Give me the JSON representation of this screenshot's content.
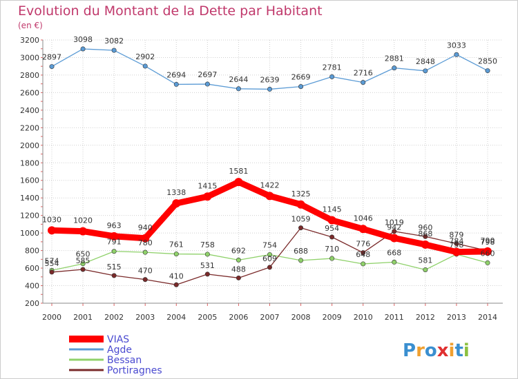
{
  "chart_data": {
    "type": "line",
    "title": "Evolution du Montant de la Dette par Habitant",
    "subtitle": "(en €)",
    "xlabel": "",
    "ylabel": "",
    "categories": [
      "2000",
      "2001",
      "2002",
      "2003",
      "2004",
      "2005",
      "2006",
      "2007",
      "2008",
      "2009",
      "2010",
      "2011",
      "2012",
      "2013",
      "2014"
    ],
    "ylim": [
      200,
      3200
    ],
    "yticks": [
      200,
      400,
      600,
      800,
      1000,
      1200,
      1400,
      1600,
      1800,
      2000,
      2200,
      2400,
      2600,
      2800,
      3000,
      3200
    ],
    "grid": true,
    "legend_position": "bottom-left",
    "series": [
      {
        "name": "Agde",
        "color": "#5b9bd5",
        "values": [
          2897,
          3098,
          3082,
          2902,
          2694,
          2697,
          2644,
          2639,
          2669,
          2781,
          2716,
          2881,
          2848,
          3033,
          2850
        ]
      },
      {
        "name": "Bessan",
        "color": "#8fd16a",
        "values": [
          574,
          650,
          791,
          780,
          761,
          758,
          692,
          754,
          688,
          710,
          648,
          668,
          581,
          758,
          660
        ]
      },
      {
        "name": "Portiragnes",
        "color": "#7a2a2a",
        "values": [
          554,
          585,
          515,
          470,
          410,
          531,
          488,
          609,
          1059,
          954,
          776,
          1019,
          960,
          879,
          798
        ]
      },
      {
        "name": "VIAS",
        "color": "#ff0000",
        "values": [
          1030,
          1020,
          963,
          940,
          1338,
          1415,
          1581,
          1422,
          1325,
          1145,
          1046,
          942,
          868,
          784,
          790
        ]
      }
    ],
    "legend_order": [
      "VIAS",
      "Agde",
      "Bessan",
      "Portiragnes"
    ],
    "data_labels": {
      "Agde": [
        "2897",
        "3098",
        "3082",
        "2902",
        "2694",
        "2697",
        "2644",
        "2639",
        "2669",
        "2781",
        "2716",
        "2881",
        "2848",
        "3033",
        "2850"
      ],
      "Bessan": [
        "574",
        "650",
        "791",
        "780",
        "761",
        "758",
        "692",
        "754",
        "688",
        "710",
        "648",
        "668",
        "581",
        "758",
        "660"
      ],
      "Portiragnes": [
        "554",
        "585",
        "515",
        "470",
        "410",
        "531",
        "488",
        "609",
        "1059",
        "954",
        "776",
        "1019",
        "960",
        "879",
        "798"
      ],
      "VIAS": [
        "1030",
        "1020",
        "963",
        "940",
        "1338",
        "1415",
        "1581",
        "1422",
        "1325",
        "1145",
        "1046",
        "942",
        "868",
        "784",
        "790"
      ]
    }
  },
  "brand": {
    "logo_text": "Proxiti",
    "logo_colors": [
      "#3a8fd0",
      "#f0a030",
      "#3a8fd0",
      "#e03030",
      "#f0a030",
      "#3a8fd0",
      "#8cc040"
    ]
  },
  "colors": {
    "title": "#c0386b",
    "axis_text": "#333333",
    "grid": "#cfcfcf",
    "legend_text": "#4a4ad0",
    "frame_border": "#cccccc"
  }
}
